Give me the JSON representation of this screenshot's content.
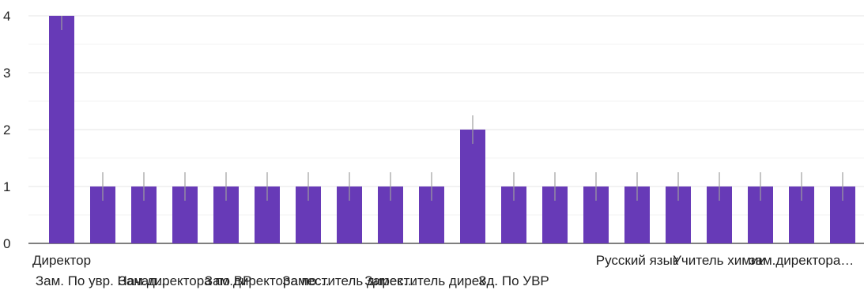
{
  "chart_data": {
    "type": "bar",
    "title": "",
    "xlabel": "",
    "ylabel": "",
    "ylim": [
      0,
      4
    ],
    "yticks": [
      "0",
      "1",
      "2",
      "3",
      "4"
    ],
    "grid": true,
    "bar_color": "#673ab7",
    "error_color": "#9e9e9e",
    "categories": [
      "Директор",
      "Зам. По увр. Начал…",
      "",
      "Зам.директора по ВР",
      "",
      "Зам.директора по…",
      "",
      "Заместитель дирек…",
      "",
      "Заместитель дирек…",
      "",
      "Зд. По УВР",
      "",
      "",
      "Русский язык",
      "",
      "Учитель химии",
      "",
      "зам.директора…",
      ""
    ],
    "values": [
      4,
      1,
      1,
      1,
      1,
      1,
      1,
      1,
      1,
      1,
      2,
      1,
      1,
      1,
      1,
      1,
      1,
      1,
      1,
      1
    ]
  }
}
